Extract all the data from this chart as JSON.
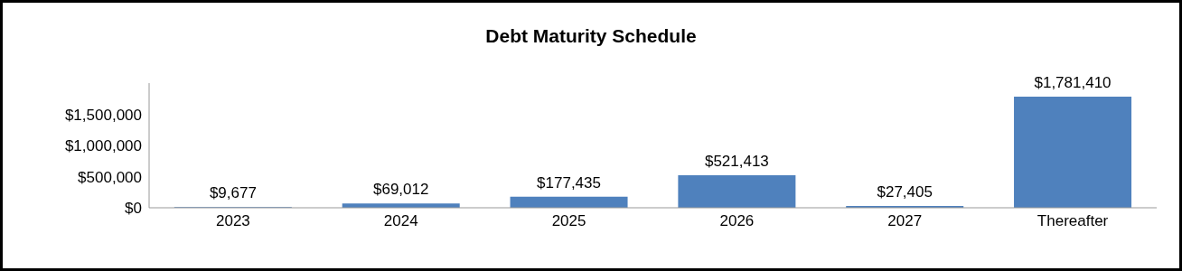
{
  "chart_data": {
    "type": "bar",
    "title": "Debt Maturity Schedule",
    "categories": [
      "2023",
      "2024",
      "2025",
      "2026",
      "2027",
      "Thereafter"
    ],
    "values": [
      9677,
      69012,
      177435,
      521413,
      27405,
      1781410
    ],
    "value_labels": [
      "$9,677",
      "$69,012",
      "$177,435",
      "$521,413",
      "$27,405",
      "$1,781,410"
    ],
    "color": "#4f81bd",
    "ylim": [
      0,
      2000000
    ],
    "yticks": [
      {
        "value": 0,
        "label": "$0"
      },
      {
        "value": 500000,
        "label": "$500,000"
      },
      {
        "value": 1000000,
        "label": "$1,000,000"
      },
      {
        "value": 1500000,
        "label": "$1,500,000"
      }
    ],
    "grid": false,
    "legend": false
  }
}
